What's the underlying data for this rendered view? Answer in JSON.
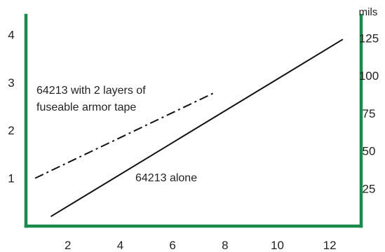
{
  "chart_data": {
    "type": "line",
    "xlim": [
      0.4,
      13.2
    ],
    "ylim": [
      0,
      4.4
    ],
    "y2lim": [
      0,
      140
    ],
    "x_ticks": [
      2,
      4,
      6,
      8,
      10,
      12
    ],
    "y_ticks": [
      1,
      2,
      3,
      4
    ],
    "y2_ticks": [
      25,
      50,
      75,
      100,
      125
    ],
    "y2_unit": "mils",
    "grid": false,
    "axis_color": "#1a8a4a",
    "line_color": "#111111",
    "series": [
      {
        "name": "64213 alone",
        "style": "solid",
        "x": [
          1.35,
          12.5
        ],
        "y": [
          0.2,
          3.9
        ]
      },
      {
        "name": "64213 with 2 layers of fuseable armor tape",
        "name_lines": [
          "64213 with 2 layers of",
          "fuseable armor tape"
        ],
        "style": "dashdot",
        "x": [
          0.75,
          7.65
        ],
        "y": [
          1.0,
          2.8
        ]
      }
    ]
  }
}
